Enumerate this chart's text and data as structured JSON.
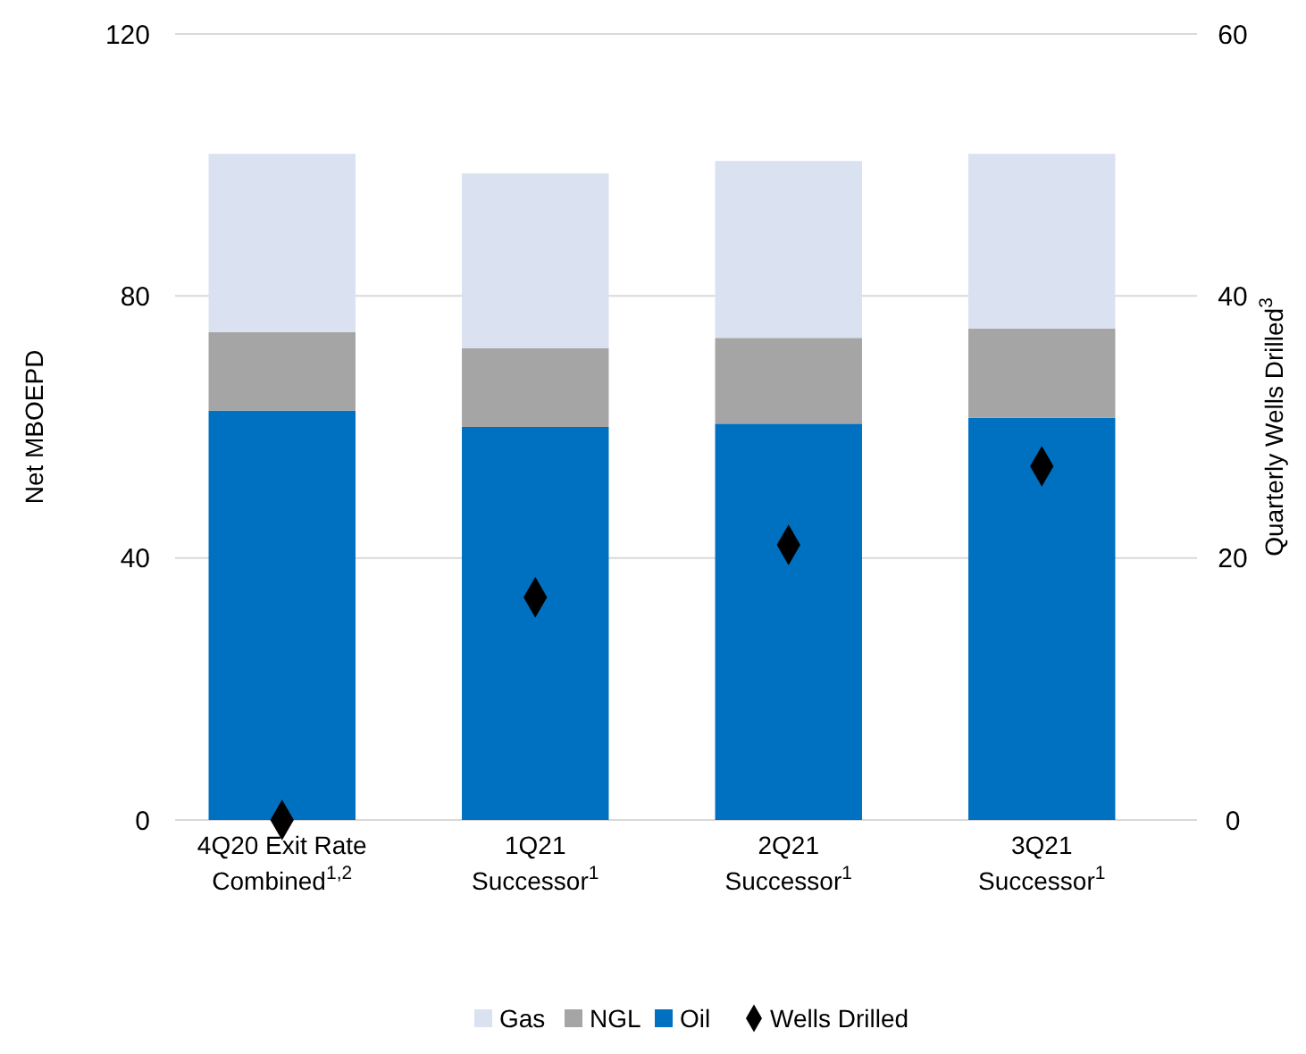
{
  "chart_data": {
    "type": "bar",
    "stacked": true,
    "ylabel": "Net MBOEPD",
    "y2label": "Quarterly Wells Drilled$^{3}$",
    "categories": [
      "4Q20 Exit Rate\nCombined$^{1,2}$",
      "1Q21\nSuccessor$^{1}$",
      "2Q21\nSuccessor$^{1}$",
      "3Q21\nSuccessor$^{1}$"
    ],
    "series": [
      {
        "name": "Oil",
        "color": "#0070c0",
        "values": [
          62.5,
          60,
          60.5,
          61.4
        ]
      },
      {
        "name": "NGL",
        "color": "#a5a5a5",
        "values": [
          12,
          12,
          13.1,
          13.6
        ]
      },
      {
        "name": "Gas",
        "color": "#dae1f0",
        "values": [
          27.2,
          26.7,
          27,
          26.7
        ]
      },
      {
        "name": "Wells Drilled",
        "type": "scatter",
        "axis": "y2",
        "color": "#000000",
        "marker": "diamond",
        "values": [
          0,
          17,
          21,
          27
        ]
      }
    ],
    "ylim": [
      0,
      120
    ],
    "yticks": [
      0,
      40,
      80,
      120
    ],
    "y2lim": [
      0,
      60
    ],
    "y2ticks": [
      0,
      20,
      40,
      60
    ],
    "grid": "y",
    "legend": "bottom"
  }
}
